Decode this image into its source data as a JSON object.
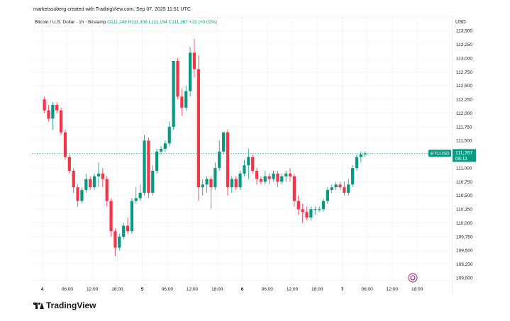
{
  "header": {
    "text": "marketssuberg created with TradingView.com, Sep 07, 2025 11:51 UTC"
  },
  "legend": {
    "symbol": "Bitcoin / U.S. Dollar · 1h · Bitstamp",
    "ohlc": "O111,248  H111,308  L111,194  C111,267  +22 (+0.02%)"
  },
  "axis": {
    "currency": "USD"
  },
  "price_tag": {
    "symbol": "BTCUSD",
    "price": "111,267",
    "countdown": "08:11"
  },
  "footer": {
    "brand": "TradingView"
  },
  "colors": {
    "up": "#089981",
    "down": "#f23645",
    "grid": "#f0f3fa",
    "text": "#131722"
  },
  "chart_data": {
    "type": "candlestick",
    "title": "Bitcoin / U.S. Dollar · 1h · Bitstamp",
    "ylabel": "USD",
    "ylim": [
      108950,
      113750
    ],
    "last_price": 111267,
    "y_ticks": [
      109000,
      109250,
      109500,
      109750,
      110000,
      110250,
      110500,
      110750,
      111000,
      111250,
      111500,
      111750,
      112000,
      112250,
      112500,
      112750,
      113000,
      113250,
      113500
    ],
    "y_tick_labels": [
      "109,000",
      "109,250",
      "109,500",
      "109,750",
      "110,000",
      "110,250",
      "110,500",
      "110,750",
      "111,000",
      "111,250",
      "111,500",
      "111,750",
      "112,000",
      "112,250",
      "112,500",
      "112,750",
      "113,000",
      "113,250",
      "113,500"
    ],
    "x_tick_labels": [
      "4",
      "06:00",
      "12:00",
      "18:00",
      "5",
      "06:00",
      "12:00",
      "18:00",
      "6",
      "06:00",
      "12:00",
      "18:00",
      "7",
      "06:00",
      "12:00",
      "18:00"
    ],
    "x_tick_hours": [
      0,
      6,
      12,
      18,
      24,
      30,
      36,
      42,
      48,
      54,
      60,
      66,
      72,
      78,
      84,
      90
    ],
    "x_range_hours": [
      -2.5,
      98.5
    ],
    "candles": [
      {
        "o": 112250,
        "h": 112300,
        "l": 112000,
        "c": 112050
      },
      {
        "o": 112050,
        "h": 112150,
        "l": 111850,
        "c": 111900
      },
      {
        "o": 111900,
        "h": 112200,
        "l": 111700,
        "c": 112150
      },
      {
        "o": 112150,
        "h": 112200,
        "l": 112000,
        "c": 112050
      },
      {
        "o": 112050,
        "h": 112100,
        "l": 111600,
        "c": 111650
      },
      {
        "o": 111650,
        "h": 111700,
        "l": 111150,
        "c": 111200
      },
      {
        "o": 111200,
        "h": 111250,
        "l": 110900,
        "c": 110950
      },
      {
        "o": 110950,
        "h": 111000,
        "l": 110550,
        "c": 110650
      },
      {
        "o": 110650,
        "h": 110700,
        "l": 110300,
        "c": 110400
      },
      {
        "o": 110400,
        "h": 110650,
        "l": 110350,
        "c": 110600
      },
      {
        "o": 110600,
        "h": 110900,
        "l": 110550,
        "c": 110800
      },
      {
        "o": 110800,
        "h": 110850,
        "l": 110600,
        "c": 110650
      },
      {
        "o": 110650,
        "h": 110900,
        "l": 110600,
        "c": 110850
      },
      {
        "o": 110850,
        "h": 111100,
        "l": 110650,
        "c": 110900
      },
      {
        "o": 110900,
        "h": 111000,
        "l": 110650,
        "c": 110800
      },
      {
        "o": 110800,
        "h": 110850,
        "l": 110300,
        "c": 110400
      },
      {
        "o": 110400,
        "h": 110450,
        "l": 109750,
        "c": 109850
      },
      {
        "o": 109850,
        "h": 109900,
        "l": 109400,
        "c": 109550
      },
      {
        "o": 109550,
        "h": 109800,
        "l": 109500,
        "c": 109750
      },
      {
        "o": 109750,
        "h": 110000,
        "l": 109700,
        "c": 109950
      },
      {
        "o": 109950,
        "h": 110100,
        "l": 109800,
        "c": 109850
      },
      {
        "o": 109850,
        "h": 110450,
        "l": 109800,
        "c": 110400
      },
      {
        "o": 110400,
        "h": 110650,
        "l": 110350,
        "c": 110450
      },
      {
        "o": 110450,
        "h": 110700,
        "l": 110400,
        "c": 110550
      },
      {
        "o": 110550,
        "h": 111600,
        "l": 110500,
        "c": 111500
      },
      {
        "o": 111500,
        "h": 111550,
        "l": 110450,
        "c": 110550
      },
      {
        "o": 110550,
        "h": 111050,
        "l": 110500,
        "c": 110950
      },
      {
        "o": 110950,
        "h": 111350,
        "l": 110900,
        "c": 111300
      },
      {
        "o": 111300,
        "h": 111400,
        "l": 111250,
        "c": 111350
      },
      {
        "o": 111350,
        "h": 111500,
        "l": 111300,
        "c": 111450
      },
      {
        "o": 111450,
        "h": 111850,
        "l": 111400,
        "c": 111750
      },
      {
        "o": 111750,
        "h": 112950,
        "l": 111700,
        "c": 112950
      },
      {
        "o": 112950,
        "h": 113000,
        "l": 112250,
        "c": 112300
      },
      {
        "o": 112300,
        "h": 112450,
        "l": 111950,
        "c": 112100
      },
      {
        "o": 112100,
        "h": 112500,
        "l": 112050,
        "c": 112400
      },
      {
        "o": 112400,
        "h": 113200,
        "l": 112300,
        "c": 113100
      },
      {
        "o": 113100,
        "h": 113350,
        "l": 112650,
        "c": 112800
      },
      {
        "o": 112800,
        "h": 113050,
        "l": 110400,
        "c": 110650
      },
      {
        "o": 110650,
        "h": 110800,
        "l": 110500,
        "c": 110700
      },
      {
        "o": 110700,
        "h": 110850,
        "l": 110550,
        "c": 110800
      },
      {
        "o": 110800,
        "h": 110850,
        "l": 110250,
        "c": 110650
      },
      {
        "o": 110650,
        "h": 111100,
        "l": 110600,
        "c": 111000
      },
      {
        "o": 111000,
        "h": 111500,
        "l": 110950,
        "c": 111300
      },
      {
        "o": 111300,
        "h": 111650,
        "l": 111250,
        "c": 111650
      },
      {
        "o": 111650,
        "h": 111700,
        "l": 110500,
        "c": 110650
      },
      {
        "o": 110650,
        "h": 110850,
        "l": 110550,
        "c": 110800
      },
      {
        "o": 110800,
        "h": 110850,
        "l": 110600,
        "c": 110650
      },
      {
        "o": 110650,
        "h": 110950,
        "l": 110600,
        "c": 110900
      },
      {
        "o": 110900,
        "h": 111150,
        "l": 110850,
        "c": 111050
      },
      {
        "o": 111050,
        "h": 111350,
        "l": 110800,
        "c": 111200
      },
      {
        "o": 111200,
        "h": 111250,
        "l": 110900,
        "c": 110950
      },
      {
        "o": 110950,
        "h": 111000,
        "l": 110700,
        "c": 110800
      },
      {
        "o": 110800,
        "h": 110850,
        "l": 110700,
        "c": 110750
      },
      {
        "o": 110750,
        "h": 110950,
        "l": 110700,
        "c": 110850
      },
      {
        "o": 110850,
        "h": 110900,
        "l": 110700,
        "c": 110800
      },
      {
        "o": 110800,
        "h": 110950,
        "l": 110750,
        "c": 110900
      },
      {
        "o": 110900,
        "h": 110950,
        "l": 110650,
        "c": 110750
      },
      {
        "o": 110750,
        "h": 110900,
        "l": 110700,
        "c": 110850
      },
      {
        "o": 110850,
        "h": 110950,
        "l": 110750,
        "c": 110900
      },
      {
        "o": 110900,
        "h": 111000,
        "l": 110750,
        "c": 110850
      },
      {
        "o": 110850,
        "h": 110900,
        "l": 110300,
        "c": 110400
      },
      {
        "o": 110400,
        "h": 110500,
        "l": 110150,
        "c": 110250
      },
      {
        "o": 110250,
        "h": 110350,
        "l": 110000,
        "c": 110200
      },
      {
        "o": 110200,
        "h": 110300,
        "l": 110050,
        "c": 110100
      },
      {
        "o": 110100,
        "h": 110300,
        "l": 110050,
        "c": 110250
      },
      {
        "o": 110250,
        "h": 110300,
        "l": 110150,
        "c": 110250
      },
      {
        "o": 110250,
        "h": 110300,
        "l": 110200,
        "c": 110250
      },
      {
        "o": 110250,
        "h": 110450,
        "l": 110200,
        "c": 110400
      },
      {
        "o": 110400,
        "h": 110650,
        "l": 110350,
        "c": 110600
      },
      {
        "o": 110600,
        "h": 110700,
        "l": 110550,
        "c": 110650
      },
      {
        "o": 110650,
        "h": 110750,
        "l": 110600,
        "c": 110700
      },
      {
        "o": 110700,
        "h": 110750,
        "l": 110600,
        "c": 110650
      },
      {
        "o": 110650,
        "h": 110750,
        "l": 110500,
        "c": 110550
      },
      {
        "o": 110550,
        "h": 110800,
        "l": 110500,
        "c": 110700
      },
      {
        "o": 110700,
        "h": 111050,
        "l": 110650,
        "c": 111000
      },
      {
        "o": 111000,
        "h": 111250,
        "l": 110950,
        "c": 111200
      },
      {
        "o": 111200,
        "h": 111300,
        "l": 111100,
        "c": 111250
      },
      {
        "o": 111248,
        "h": 111308,
        "l": 111194,
        "c": 111267
      }
    ]
  }
}
